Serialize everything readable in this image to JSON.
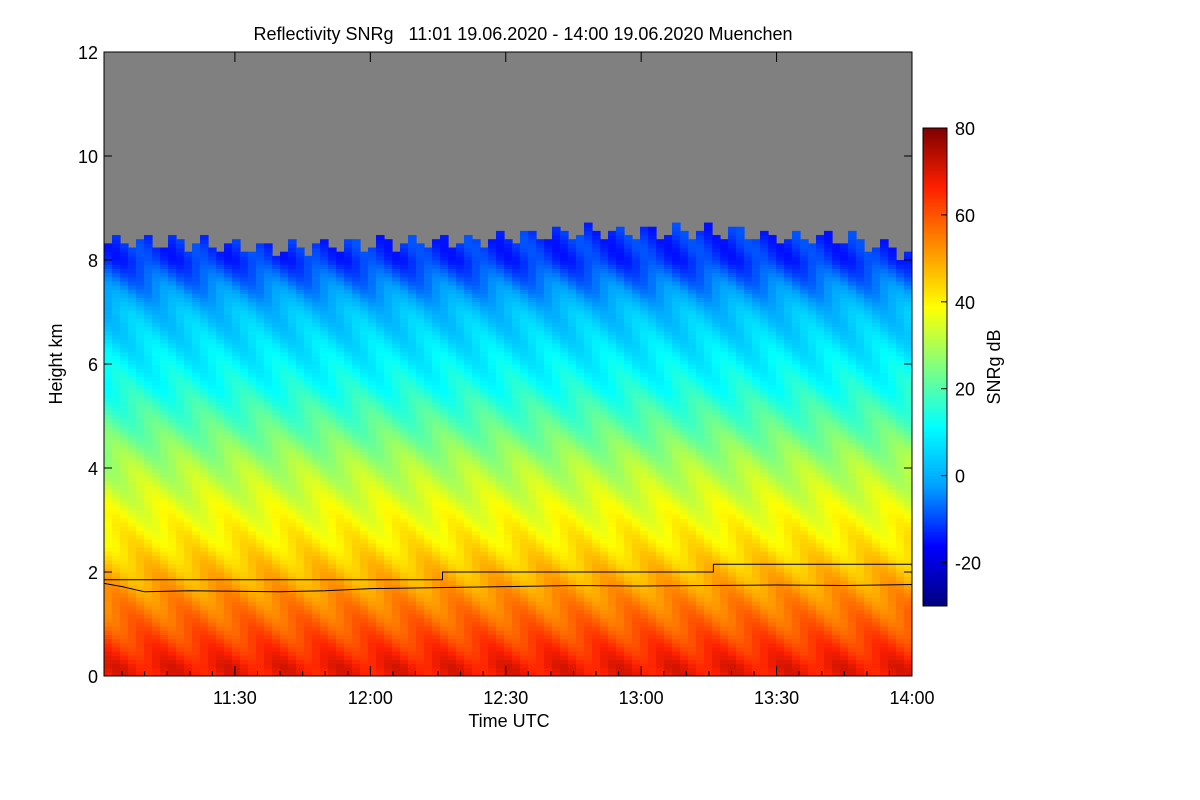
{
  "chart_data": {
    "type": "heatmap",
    "title": "Reflectivity SNRg   11:01 19.06.2020 - 14:00 19.06.2020 Muenchen",
    "xlabel": "Time UTC",
    "ylabel": "Height km",
    "x_range": [
      "11:01",
      "14:00"
    ],
    "x_ticks": [
      "11:30",
      "12:00",
      "12:30",
      "13:00",
      "13:30",
      "14:00"
    ],
    "ylim": [
      0,
      12
    ],
    "y_ticks": [
      "0",
      "2",
      "4",
      "6",
      "8",
      "10",
      "12"
    ],
    "colorbar": {
      "label": "SNRg dB",
      "range": [
        -30,
        80
      ],
      "ticks": [
        "-20",
        "0",
        "20",
        "40",
        "60",
        "80"
      ],
      "colormap": [
        "#00007f",
        "#0000ff",
        "#00a0ff",
        "#00ffff",
        "#80ff80",
        "#ffff00",
        "#ff9000",
        "#ff2000",
        "#7f0000"
      ]
    },
    "no_signal_color": "#808080",
    "profile": {
      "x_minutes_from_start": [
        0,
        15,
        30,
        45,
        60,
        75,
        90,
        105,
        120,
        135,
        150,
        165,
        179
      ],
      "echo_top_km": [
        8.3,
        8.3,
        8.2,
        8.2,
        8.3,
        8.3,
        8.4,
        8.5,
        8.5,
        8.5,
        8.4,
        8.4,
        8.1
      ],
      "snr_dB": {
        "0.2": 68,
        "1.0": 58,
        "2.5": 42,
        "4.0": 30,
        "5.5": 14,
        "7.0": 2,
        "8.0": -12
      }
    },
    "lines": [
      {
        "x": [
          "11:01",
          "12:16",
          "12:16",
          "13:16",
          "13:16",
          "14:00"
        ],
        "y": [
          1.85,
          1.85,
          2.0,
          2.0,
          2.15,
          2.15
        ]
      },
      {
        "x": [
          "11:01",
          "11:05",
          "11:10",
          "11:20",
          "11:30",
          "11:40",
          "11:50",
          "12:00",
          "12:15",
          "12:30",
          "12:45",
          "13:00",
          "13:15",
          "13:30",
          "13:45",
          "14:00"
        ],
        "y": [
          1.78,
          1.72,
          1.62,
          1.64,
          1.63,
          1.62,
          1.64,
          1.68,
          1.7,
          1.72,
          1.74,
          1.73,
          1.74,
          1.75,
          1.74,
          1.76
        ]
      }
    ]
  }
}
